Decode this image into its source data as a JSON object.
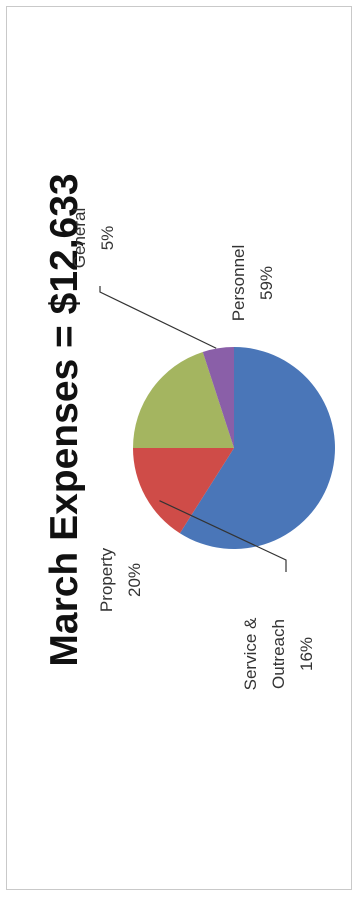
{
  "chart_data": {
    "type": "pie",
    "title": "March Expenses = $12,633",
    "slices": [
      {
        "label": "Personnel",
        "label_lines": [
          "Personnel",
          "59%"
        ],
        "value": 59,
        "color": "#4a76b8"
      },
      {
        "label": "Service & Outreach",
        "label_lines": [
          "Service &",
          "Outreach",
          "16%"
        ],
        "value": 16,
        "color": "#cf4c48"
      },
      {
        "label": "Property",
        "label_lines": [
          "Property",
          "20%"
        ],
        "value": 20,
        "color": "#a4b560"
      },
      {
        "label": "General",
        "label_lines": [
          "General",
          "5%"
        ],
        "value": 5,
        "color": "#8a5fa8"
      }
    ],
    "legend": "none"
  }
}
